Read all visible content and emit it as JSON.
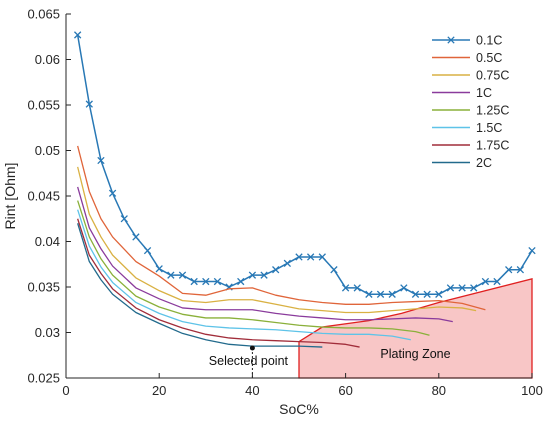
{
  "chart_data": {
    "type": "line",
    "xlabel": "SoC%",
    "ylabel": "Rint [Ohm]",
    "xlim": [
      0,
      100
    ],
    "ylim": [
      0.025,
      0.065
    ],
    "xticks": [
      0,
      20,
      40,
      60,
      80,
      100
    ],
    "yticks": [
      0.025,
      0.03,
      0.035,
      0.04,
      0.045,
      0.05,
      0.055,
      0.06,
      0.065
    ],
    "xtick_labels": [
      "0",
      "20",
      "40",
      "60",
      "80",
      "100"
    ],
    "ytick_labels": [
      "0.025",
      "0.03",
      "0.035",
      "0.04",
      "0.045",
      "0.05",
      "0.055",
      "0.06",
      "0.065"
    ],
    "grid": false,
    "legend_position": "top-right",
    "series": [
      {
        "name": "0.1C",
        "color": "#2878b5",
        "marker": "x",
        "x": [
          2.5,
          5,
          7.5,
          10,
          12.5,
          15,
          17.5,
          20,
          22.5,
          25,
          27.5,
          30,
          32.5,
          35,
          37.5,
          40,
          42.5,
          45,
          47.5,
          50,
          52.5,
          55,
          57.5,
          60,
          62.5,
          65,
          67.5,
          70,
          72.5,
          75,
          77.5,
          80,
          82.5,
          85,
          87.5,
          90,
          92.5,
          95,
          97.5,
          100
        ],
        "y": [
          0.0627,
          0.0551,
          0.0489,
          0.0453,
          0.0425,
          0.0405,
          0.039,
          0.037,
          0.0363,
          0.0363,
          0.0356,
          0.0356,
          0.0356,
          0.035,
          0.0356,
          0.0363,
          0.0363,
          0.0369,
          0.0376,
          0.0383,
          0.0383,
          0.0383,
          0.0369,
          0.0349,
          0.0349,
          0.0342,
          0.0342,
          0.0342,
          0.0349,
          0.0342,
          0.0342,
          0.0342,
          0.0349,
          0.0349,
          0.0349,
          0.0356,
          0.0356,
          0.0369,
          0.0369,
          0.039
        ]
      },
      {
        "name": "0.5C",
        "color": "#e0653a",
        "x": [
          2.5,
          5,
          7.5,
          10,
          15,
          20,
          25,
          30,
          35,
          40,
          45,
          50,
          55,
          60,
          65,
          70,
          75,
          80,
          85,
          90
        ],
        "y": [
          0.0505,
          0.0455,
          0.0425,
          0.0405,
          0.0378,
          0.0362,
          0.0343,
          0.0341,
          0.0348,
          0.0349,
          0.0341,
          0.0336,
          0.0333,
          0.0331,
          0.0331,
          0.0333,
          0.0334,
          0.0335,
          0.0332,
          0.0325
        ]
      },
      {
        "name": "0.75C",
        "color": "#d9b143",
        "x": [
          2.5,
          5,
          7.5,
          10,
          15,
          20,
          25,
          30,
          35,
          40,
          45,
          50,
          55,
          60,
          65,
          70,
          75,
          80,
          85,
          88
        ],
        "y": [
          0.0482,
          0.043,
          0.0405,
          0.0385,
          0.036,
          0.0346,
          0.0335,
          0.0333,
          0.0336,
          0.0336,
          0.0331,
          0.0326,
          0.0324,
          0.0322,
          0.0322,
          0.0324,
          0.0326,
          0.0328,
          0.0327,
          0.0324
        ]
      },
      {
        "name": "1C",
        "color": "#8a3b9c",
        "x": [
          2.5,
          5,
          7.5,
          10,
          15,
          20,
          25,
          30,
          35,
          40,
          45,
          50,
          55,
          60,
          65,
          70,
          75,
          80,
          83
        ],
        "y": [
          0.046,
          0.0415,
          0.0392,
          0.0373,
          0.0349,
          0.0337,
          0.0327,
          0.0325,
          0.0325,
          0.0325,
          0.0321,
          0.0318,
          0.0316,
          0.0314,
          0.0314,
          0.0315,
          0.0316,
          0.0315,
          0.0312
        ]
      },
      {
        "name": "1.25C",
        "color": "#8ab03a",
        "x": [
          2.5,
          5,
          7.5,
          10,
          15,
          20,
          25,
          30,
          35,
          40,
          45,
          50,
          55,
          60,
          65,
          70,
          75,
          78
        ],
        "y": [
          0.0445,
          0.0405,
          0.0381,
          0.0363,
          0.034,
          0.0328,
          0.032,
          0.0316,
          0.0316,
          0.0314,
          0.0311,
          0.0308,
          0.0306,
          0.0305,
          0.0305,
          0.0304,
          0.0301,
          0.0297
        ]
      },
      {
        "name": "1.5C",
        "color": "#5ec3e8",
        "x": [
          2.5,
          5,
          7.5,
          10,
          15,
          20,
          25,
          30,
          35,
          40,
          45,
          50,
          55,
          60,
          65,
          70,
          74
        ],
        "y": [
          0.0435,
          0.0395,
          0.0372,
          0.0355,
          0.0333,
          0.0321,
          0.0312,
          0.0307,
          0.0305,
          0.0304,
          0.0303,
          0.0301,
          0.0299,
          0.0298,
          0.0298,
          0.0296,
          0.0292
        ]
      },
      {
        "name": "1.75C",
        "color": "#a12d3a",
        "x": [
          2.5,
          5,
          7.5,
          10,
          15,
          20,
          25,
          30,
          35,
          40,
          45,
          50,
          55,
          60,
          63
        ],
        "y": [
          0.0425,
          0.0385,
          0.0365,
          0.0348,
          0.0327,
          0.0314,
          0.0305,
          0.0298,
          0.0294,
          0.0292,
          0.0291,
          0.029,
          0.0289,
          0.0287,
          0.0284
        ]
      },
      {
        "name": "2C",
        "color": "#226a8c",
        "x": [
          2.5,
          5,
          7.5,
          10,
          15,
          20,
          25,
          30,
          35,
          40,
          45,
          50,
          55
        ],
        "y": [
          0.042,
          0.0378,
          0.0358,
          0.0342,
          0.0322,
          0.031,
          0.0299,
          0.0292,
          0.0287,
          0.0285,
          0.0285,
          0.0285,
          0.0284
        ]
      }
    ],
    "annotations": {
      "selected_point": {
        "label": "Selected point",
        "x": 40,
        "y": 0.0283
      },
      "plating_zone": {
        "label": "Plating Zone",
        "fill": "#f8c6c6",
        "edge": "#e02020",
        "polygon": [
          [
            50,
            0.025
          ],
          [
            100,
            0.025
          ],
          [
            100,
            0.0359
          ],
          [
            80,
            0.0333
          ],
          [
            72,
            0.0321
          ],
          [
            65,
            0.0313
          ],
          [
            55,
            0.0306
          ],
          [
            50,
            0.029
          ]
        ]
      }
    }
  }
}
